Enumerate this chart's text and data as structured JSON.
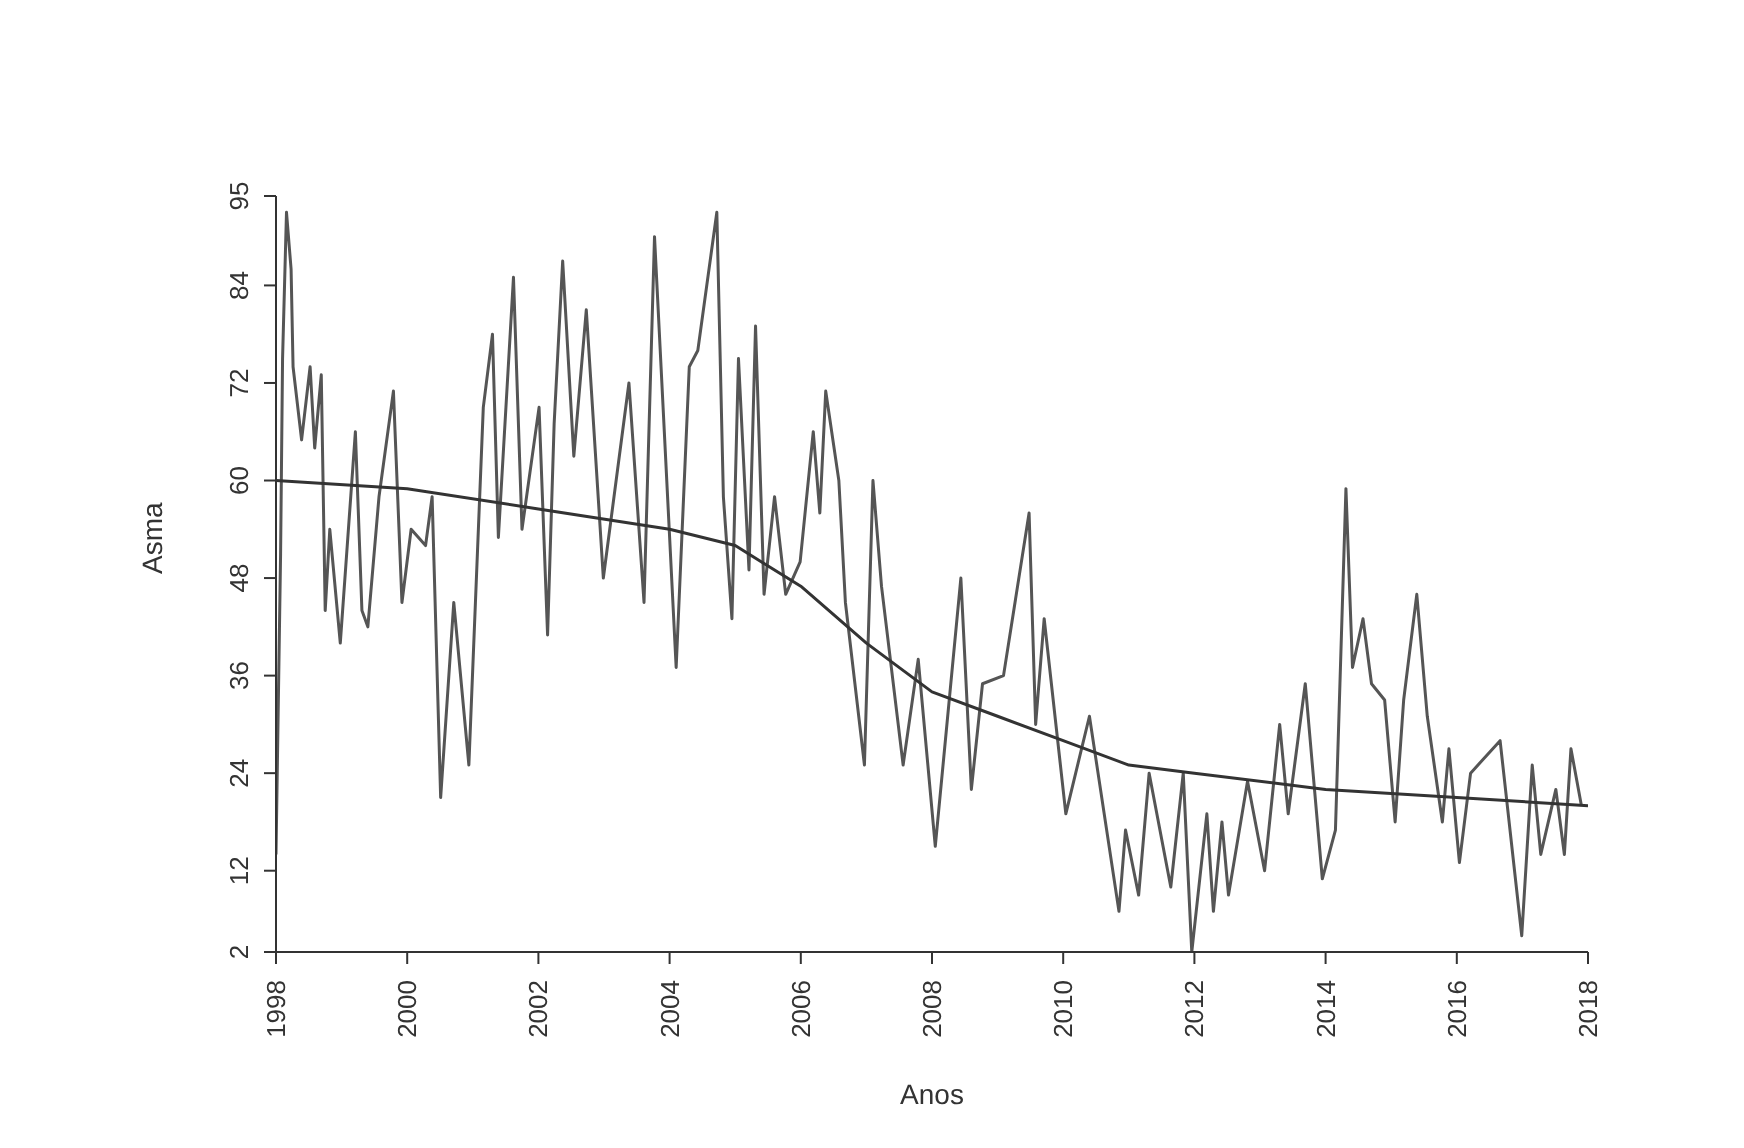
{
  "chart_data": {
    "type": "line",
    "xlabel": "Anos",
    "ylabel": "Asma",
    "xlim": [
      1998,
      2018
    ],
    "xticks": [
      1998,
      2000,
      2002,
      2004,
      2006,
      2008,
      2010,
      2012,
      2014,
      2016,
      2018
    ],
    "ylim": [
      2,
      95
    ],
    "yticks": [
      2,
      12,
      24,
      36,
      48,
      60,
      72,
      84,
      95
    ],
    "grid": false,
    "marker": "none",
    "line_style": "solid",
    "series": [
      {
        "color": "#555555",
        "x": [
          1998.0,
          1998.07,
          1998.1,
          1998.16,
          1998.23,
          1998.26,
          1998.39,
          1998.52,
          1998.59,
          1998.69,
          1998.75,
          1998.82,
          1998.98,
          1999.21,
          1999.31,
          1999.4,
          1999.57,
          1999.79,
          1999.92,
          2000.06,
          2000.28,
          2000.38,
          2000.51,
          2000.71,
          2000.94,
          2001.16,
          2001.3,
          2001.39,
          2001.62,
          2001.75,
          2002.01,
          2002.14,
          2002.24,
          2002.37,
          2002.54,
          2002.73,
          2002.99,
          2003.38,
          2003.61,
          2003.77,
          2004.1,
          2004.3,
          2004.43,
          2004.72,
          2004.82,
          2004.95,
          2005.05,
          2005.21,
          2005.31,
          2005.44,
          2005.6,
          2005.77,
          2005.99,
          2006.19,
          2006.29,
          2006.38,
          2006.58,
          2006.68,
          2006.97,
          2007.1,
          2007.23,
          2007.56,
          2007.79,
          2008.05,
          2008.44,
          2008.6,
          2008.77,
          2009.09,
          2009.48,
          2009.58,
          2009.71,
          2010.04,
          2010.4,
          2010.85,
          2010.95,
          2011.15,
          2011.31,
          2011.64,
          2011.83,
          2011.96,
          2012.19,
          2012.29,
          2012.42,
          2012.52,
          2012.81,
          2013.07,
          2013.3,
          2013.43,
          2013.69,
          2013.95,
          2014.15,
          2014.31,
          2014.41,
          2014.57,
          2014.7,
          2014.9,
          2015.06,
          2015.19,
          2015.39,
          2015.55,
          2015.78,
          2015.88,
          2016.04,
          2016.21,
          2016.66,
          2016.99,
          2017.15,
          2017.28,
          2017.51,
          2017.64,
          2017.74,
          2017.9
        ],
        "values": [
          14,
          51,
          75,
          93,
          86,
          74,
          65,
          74,
          64,
          73,
          44,
          54,
          40,
          66,
          44,
          42,
          58,
          71,
          45,
          54,
          52,
          58,
          21,
          45,
          25,
          69,
          78,
          53,
          85,
          54,
          69,
          41,
          67,
          87,
          63,
          81,
          48,
          72,
          45,
          90,
          37,
          74,
          76,
          93,
          58,
          43,
          75,
          49,
          79,
          46,
          58,
          46,
          50,
          66,
          56,
          71,
          60,
          45,
          25,
          60,
          47,
          25,
          38,
          15,
          48,
          22,
          35,
          36,
          56,
          30,
          43,
          19,
          31,
          7,
          17,
          9,
          24,
          10,
          24,
          2,
          19,
          7,
          18,
          9,
          23,
          12,
          30,
          19,
          35,
          11,
          17,
          59,
          37,
          43,
          35,
          33,
          18,
          33,
          46,
          31,
          18,
          27,
          13,
          24,
          28,
          4,
          25,
          14,
          22,
          14,
          27,
          20
        ]
      },
      {
        "color": "#333333",
        "x": [
          1998,
          2000,
          2002,
          2004,
          2005,
          2006,
          2007,
          2008,
          2009,
          2010,
          2011,
          2012,
          2014,
          2016,
          2018
        ],
        "values": [
          60,
          59,
          56.5,
          54,
          52,
          47,
          40,
          34,
          31,
          28,
          25,
          24,
          22,
          21,
          20
        ]
      }
    ]
  }
}
